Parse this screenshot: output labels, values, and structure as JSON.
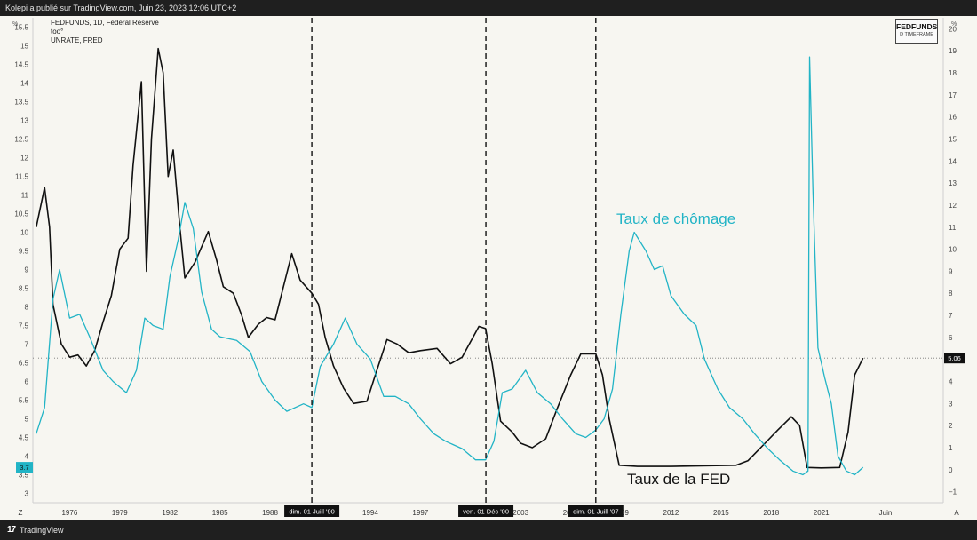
{
  "header": {
    "publisher_text": "Kolepi a publié sur TradingView.com, Juin 23, 2023 12:06 UTC+2"
  },
  "legend": {
    "line1": "FEDFUNDS, 1D, Federal Reserve",
    "line2": "too°",
    "line3": "UNRATE, FRED"
  },
  "timeframe_box": {
    "symbol": "FEDFUNDS",
    "label": "D TIMEFRAME"
  },
  "footer": {
    "brand": "TradingView",
    "logo_glyph": "17"
  },
  "colors": {
    "fed": "#111111",
    "unemployment": "#22b4c6",
    "background": "#f7f6f1",
    "marker_bg": "#111111",
    "price_bg": "#111111"
  },
  "chart_data": {
    "type": "line",
    "left_axis_unit": "%",
    "right_axis_unit": "%",
    "left_axis_ticks": [
      "15.5",
      "15",
      "14.5",
      "14",
      "13.5",
      "13",
      "12.5",
      "12",
      "11.5",
      "11",
      "10.5",
      "10",
      "9.5",
      "9",
      "8.5",
      "8",
      "7.5",
      "7",
      "6.5",
      "6",
      "5.5",
      "5",
      "4.5",
      "4",
      "3.5",
      "3"
    ],
    "right_axis_ticks": [
      "20",
      "19",
      "18",
      "17",
      "16",
      "15",
      "14",
      "13",
      "12",
      "11",
      "10",
      "9",
      "8",
      "7",
      "6",
      "5",
      "4",
      "3",
      "2",
      "1",
      "0",
      "−1"
    ],
    "x_axis_ticks": [
      "Z",
      "1976",
      "1979",
      "1982",
      "1985",
      "1988",
      "1991",
      "1994",
      "1997",
      "2000",
      "2003",
      "2006",
      "2009",
      "2012",
      "2015",
      "2018",
      "2021",
      "Juin",
      "A"
    ],
    "left_ylim": [
      2.75,
      15.75
    ],
    "right_ylim": [
      -1.5,
      20.5
    ],
    "x_range": [
      1973.8,
      2028.3
    ],
    "price_labels": {
      "left_unemployment": "3.7",
      "right_fed": "5.06"
    },
    "reference_level_fed": 5.06,
    "event_markers": [
      {
        "x": 1990.5,
        "label": "dim. 01 Juill '90"
      },
      {
        "x": 2000.92,
        "label": "ven. 01 Déc '00"
      },
      {
        "x": 2007.5,
        "label": "dim. 01 Juill '07"
      }
    ],
    "annotations": {
      "unemployment_label": "Taux de chômage",
      "fed_label": "Taux de la FED"
    },
    "series": [
      {
        "name": "FEDFUNDS",
        "axis": "right",
        "points": [
          [
            1974.0,
            11.0
          ],
          [
            1974.5,
            12.8
          ],
          [
            1974.8,
            11.0
          ],
          [
            1975.0,
            7.5
          ],
          [
            1975.5,
            5.7
          ],
          [
            1976.0,
            5.1
          ],
          [
            1976.5,
            5.2
          ],
          [
            1977.0,
            4.7
          ],
          [
            1977.5,
            5.4
          ],
          [
            1978.0,
            6.7
          ],
          [
            1978.5,
            7.9
          ],
          [
            1979.0,
            10.0
          ],
          [
            1979.5,
            10.5
          ],
          [
            1979.8,
            13.8
          ],
          [
            1980.3,
            17.6
          ],
          [
            1980.6,
            9.0
          ],
          [
            1980.9,
            15.0
          ],
          [
            1981.3,
            19.1
          ],
          [
            1981.6,
            18.0
          ],
          [
            1981.9,
            13.3
          ],
          [
            1982.2,
            14.5
          ],
          [
            1982.6,
            11.0
          ],
          [
            1982.9,
            8.7
          ],
          [
            1983.5,
            9.4
          ],
          [
            1984.3,
            10.8
          ],
          [
            1984.8,
            9.5
          ],
          [
            1985.2,
            8.3
          ],
          [
            1985.8,
            8.0
          ],
          [
            1986.3,
            7.0
          ],
          [
            1986.7,
            6.0
          ],
          [
            1987.3,
            6.6
          ],
          [
            1987.8,
            6.9
          ],
          [
            1988.3,
            6.8
          ],
          [
            1988.8,
            8.3
          ],
          [
            1989.3,
            9.8
          ],
          [
            1989.8,
            8.6
          ],
          [
            1990.5,
            8.0
          ],
          [
            1990.9,
            7.5
          ],
          [
            1991.3,
            6.0
          ],
          [
            1991.8,
            4.7
          ],
          [
            1992.4,
            3.7
          ],
          [
            1993.0,
            3.0
          ],
          [
            1993.8,
            3.1
          ],
          [
            1994.3,
            4.3
          ],
          [
            1995.0,
            5.9
          ],
          [
            1995.6,
            5.7
          ],
          [
            1996.3,
            5.3
          ],
          [
            1997.0,
            5.4
          ],
          [
            1998.0,
            5.5
          ],
          [
            1998.8,
            4.8
          ],
          [
            1999.5,
            5.1
          ],
          [
            2000.0,
            5.8
          ],
          [
            2000.5,
            6.5
          ],
          [
            2000.9,
            6.4
          ],
          [
            2001.3,
            4.8
          ],
          [
            2001.8,
            2.2
          ],
          [
            2002.5,
            1.7
          ],
          [
            2003.0,
            1.2
          ],
          [
            2003.7,
            1.0
          ],
          [
            2004.5,
            1.4
          ],
          [
            2005.2,
            2.8
          ],
          [
            2006.0,
            4.3
          ],
          [
            2006.6,
            5.25
          ],
          [
            2007.5,
            5.25
          ],
          [
            2007.9,
            4.3
          ],
          [
            2008.3,
            2.3
          ],
          [
            2008.9,
            0.2
          ],
          [
            2010.0,
            0.15
          ],
          [
            2012.0,
            0.15
          ],
          [
            2015.9,
            0.2
          ],
          [
            2016.6,
            0.4
          ],
          [
            2017.5,
            1.1
          ],
          [
            2018.4,
            1.8
          ],
          [
            2019.2,
            2.4
          ],
          [
            2019.7,
            2.0
          ],
          [
            2020.15,
            0.1
          ],
          [
            2021.0,
            0.08
          ],
          [
            2022.1,
            0.1
          ],
          [
            2022.6,
            1.7
          ],
          [
            2023.0,
            4.3
          ],
          [
            2023.5,
            5.06
          ]
        ]
      },
      {
        "name": "UNRATE",
        "axis": "left",
        "points": [
          [
            1974.0,
            4.6
          ],
          [
            1974.5,
            5.3
          ],
          [
            1975.0,
            8.2
          ],
          [
            1975.4,
            9.0
          ],
          [
            1976.0,
            7.7
          ],
          [
            1976.6,
            7.8
          ],
          [
            1977.2,
            7.2
          ],
          [
            1978.0,
            6.3
          ],
          [
            1978.6,
            6.0
          ],
          [
            1979.4,
            5.7
          ],
          [
            1980.0,
            6.3
          ],
          [
            1980.5,
            7.7
          ],
          [
            1981.0,
            7.5
          ],
          [
            1981.6,
            7.4
          ],
          [
            1982.0,
            8.8
          ],
          [
            1982.5,
            9.8
          ],
          [
            1982.9,
            10.8
          ],
          [
            1983.4,
            10.1
          ],
          [
            1983.9,
            8.4
          ],
          [
            1984.5,
            7.4
          ],
          [
            1985.0,
            7.2
          ],
          [
            1986.0,
            7.1
          ],
          [
            1986.8,
            6.8
          ],
          [
            1987.5,
            6.0
          ],
          [
            1988.3,
            5.5
          ],
          [
            1989.0,
            5.2
          ],
          [
            1990.0,
            5.4
          ],
          [
            1990.5,
            5.3
          ],
          [
            1991.0,
            6.4
          ],
          [
            1991.8,
            7.0
          ],
          [
            1992.5,
            7.7
          ],
          [
            1993.2,
            7.0
          ],
          [
            1994.0,
            6.6
          ],
          [
            1994.8,
            5.6
          ],
          [
            1995.5,
            5.6
          ],
          [
            1996.3,
            5.4
          ],
          [
            1997.0,
            5.0
          ],
          [
            1997.8,
            4.6
          ],
          [
            1998.5,
            4.4
          ],
          [
            1999.5,
            4.2
          ],
          [
            2000.3,
            3.9
          ],
          [
            2000.9,
            3.9
          ],
          [
            2001.4,
            4.4
          ],
          [
            2001.9,
            5.7
          ],
          [
            2002.5,
            5.8
          ],
          [
            2003.3,
            6.3
          ],
          [
            2004.0,
            5.7
          ],
          [
            2004.8,
            5.4
          ],
          [
            2005.5,
            5.0
          ],
          [
            2006.3,
            4.6
          ],
          [
            2006.9,
            4.5
          ],
          [
            2007.5,
            4.7
          ],
          [
            2008.0,
            5.0
          ],
          [
            2008.5,
            5.8
          ],
          [
            2009.0,
            7.8
          ],
          [
            2009.5,
            9.5
          ],
          [
            2009.8,
            10.0
          ],
          [
            2010.5,
            9.5
          ],
          [
            2011.0,
            9.0
          ],
          [
            2011.5,
            9.1
          ],
          [
            2012.0,
            8.3
          ],
          [
            2012.8,
            7.8
          ],
          [
            2013.5,
            7.5
          ],
          [
            2014.0,
            6.6
          ],
          [
            2014.8,
            5.8
          ],
          [
            2015.5,
            5.3
          ],
          [
            2016.3,
            5.0
          ],
          [
            2017.0,
            4.6
          ],
          [
            2017.8,
            4.2
          ],
          [
            2018.5,
            3.9
          ],
          [
            2019.3,
            3.6
          ],
          [
            2019.9,
            3.5
          ],
          [
            2020.2,
            3.6
          ],
          [
            2020.3,
            14.7
          ],
          [
            2020.5,
            11.1
          ],
          [
            2020.8,
            6.9
          ],
          [
            2021.2,
            6.1
          ],
          [
            2021.6,
            5.4
          ],
          [
            2022.0,
            4.0
          ],
          [
            2022.5,
            3.6
          ],
          [
            2023.0,
            3.5
          ],
          [
            2023.5,
            3.7
          ]
        ]
      }
    ]
  }
}
